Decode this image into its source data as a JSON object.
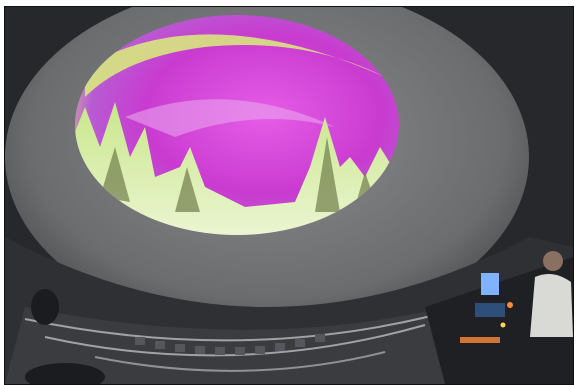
{
  "scene": {
    "dome_color": "#6b6c6e",
    "aurora_magenta": "#c93bd0",
    "aurora_green": "#d8f07a",
    "snow_trees": "#e8f2cf",
    "seating_color": "#3b3c40",
    "rail_color": "#9fa3a8",
    "monitor_glow": "#7fb2ff",
    "console_light": "#ff8a3a"
  }
}
